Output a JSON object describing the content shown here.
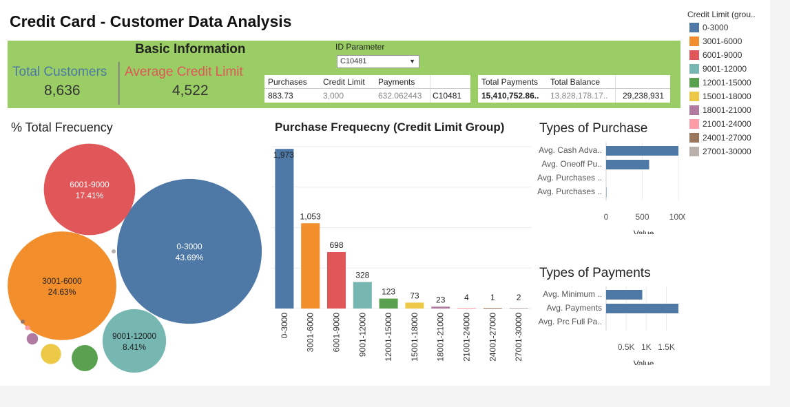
{
  "title": "Credit Card - Customer Data Analysis",
  "basic_info": {
    "title": "Basic Information",
    "total_customers_label": "Total Customers",
    "total_customers_value": "8,636",
    "avg_credit_label": "Average Credit Limit",
    "avg_credit_value": "4,522"
  },
  "id_parameter": {
    "label": "ID Parameter",
    "value": "C10481"
  },
  "table1": {
    "headers": [
      "Purchases",
      "Credit Limit",
      "Payments"
    ],
    "values": [
      "883.73",
      "3,000",
      "632.062443",
      "C10481"
    ]
  },
  "table2": {
    "headers": [
      "Total Payments",
      "Total Balance"
    ],
    "values": [
      "15,410,752.86..",
      "13,828,178.17..",
      "29,238,931"
    ]
  },
  "colors": {
    "0-3000": "#4e79a7",
    "3001-6000": "#f28e2b",
    "6001-9000": "#e15759",
    "9001-12000": "#76b7b2",
    "12001-15000": "#59a14f",
    "15001-18000": "#edc948",
    "18001-21000": "#b07aa1",
    "21001-24000": "#ff9da7",
    "24001-27000": "#9c755f",
    "27001-30000": "#bab0ac",
    "banner": "#9acd64",
    "total_customers_text": "#4e79a7",
    "avg_credit_text": "#e15759"
  },
  "legend": {
    "title": "Credit Limit (grou..",
    "items": [
      "0-3000",
      "3001-6000",
      "6001-9000",
      "9001-12000",
      "12001-15000",
      "15001-18000",
      "18001-21000",
      "21001-24000",
      "24001-27000",
      "27001-30000"
    ]
  },
  "chart_data": [
    {
      "type": "bubble",
      "title": "% Total Frecuency",
      "items": [
        {
          "label": "0-3000",
          "pct": "43.69%",
          "value": 43.69
        },
        {
          "label": "3001-6000",
          "pct": "24.63%",
          "value": 24.63
        },
        {
          "label": "6001-9000",
          "pct": "17.41%",
          "value": 17.41
        },
        {
          "label": "9001-12000",
          "pct": "8.41%",
          "value": 8.41
        },
        {
          "label": "12001-15000",
          "value": 1.42
        },
        {
          "label": "15001-18000",
          "value": 0.85
        },
        {
          "label": "18001-21000",
          "value": 0.27
        },
        {
          "label": "21001-24000",
          "value": 0.05
        },
        {
          "label": "24001-27000",
          "value": 0.01
        },
        {
          "label": "27001-30000",
          "value": 0.02
        }
      ]
    },
    {
      "type": "bar",
      "title": "Purchase Frequecny (Credit Limit Group)",
      "categories": [
        "0-3000",
        "3001-6000",
        "6001-9000",
        "9001-12000",
        "12001-15000",
        "15001-18000",
        "18001-21000",
        "21001-24000",
        "24001-27000",
        "27001-30000"
      ],
      "values": [
        1973,
        1053,
        698,
        328,
        123,
        73,
        23,
        4,
        1,
        2
      ],
      "labels": [
        "1,973",
        "1,053",
        "698",
        "328",
        "123",
        "73",
        "23",
        "4",
        "1",
        "2"
      ],
      "ylim": [
        0,
        2000
      ]
    },
    {
      "type": "bar",
      "orientation": "horizontal",
      "title": "Types of Purchase",
      "categories": [
        "Avg. Cash Adva..",
        "Avg. Oneoff Pu..",
        "Avg. Purchases ..",
        "Avg. Purchases .."
      ],
      "values": [
        1000,
        595,
        0,
        5
      ],
      "xlim": [
        0,
        1000
      ],
      "ticks": [
        0,
        500,
        1000
      ],
      "tick_labels": [
        "0",
        "500",
        "1000"
      ],
      "xlabel": "Value"
    },
    {
      "type": "bar",
      "orientation": "horizontal",
      "title": "Types of Payments",
      "categories": [
        "Avg. Minimum ..",
        "Avg. Payments",
        "Avg. Prc Full Pa.."
      ],
      "values": [
        900,
        1800,
        0
      ],
      "xlim": [
        0,
        1800
      ],
      "ticks": [
        500,
        1000,
        1500
      ],
      "tick_labels": [
        "0.5K",
        "1K",
        "1.5K"
      ],
      "xlabel": "Value"
    }
  ]
}
